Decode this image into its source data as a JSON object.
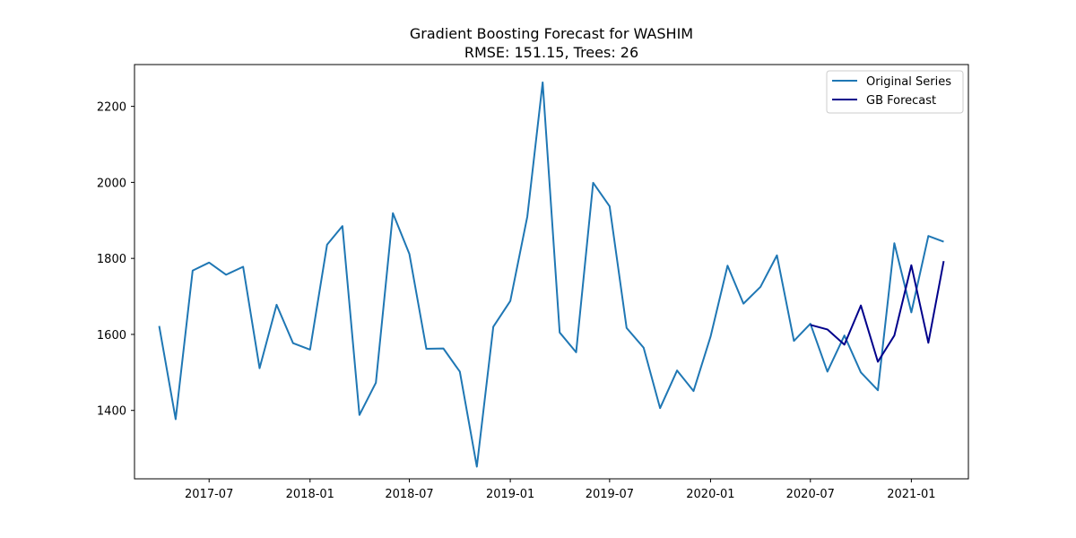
{
  "chart_data": {
    "type": "line",
    "title": "Gradient Boosting Forecast for WASHIM",
    "subtitle": "RMSE: 151.15, Trees: 26",
    "xlabel": "",
    "ylabel": "",
    "x_range": [
      "2017-02-15",
      "2021-04-15"
    ],
    "ylim": [
      1220,
      2310
    ],
    "x_ticks": [
      "2017-07",
      "2018-01",
      "2018-07",
      "2019-01",
      "2019-07",
      "2020-01",
      "2020-07",
      "2021-01"
    ],
    "y_ticks": [
      1400,
      1600,
      1800,
      2000,
      2200
    ],
    "grid": false,
    "legend_position": "top-right",
    "series": [
      {
        "name": "Original Series",
        "color": "#1f77b4",
        "points": [
          [
            "2017-04",
            1622
          ],
          [
            "2017-05",
            1377
          ],
          [
            "2017-06",
            1768
          ],
          [
            "2017-07",
            1789
          ],
          [
            "2017-08",
            1757
          ],
          [
            "2017-09",
            1778
          ],
          [
            "2017-10",
            1511
          ],
          [
            "2017-11",
            1678
          ],
          [
            "2017-12",
            1577
          ],
          [
            "2018-01",
            1560
          ],
          [
            "2018-02",
            1836
          ],
          [
            "2018-03",
            1885
          ],
          [
            "2018-04",
            1388
          ],
          [
            "2018-05",
            1473
          ],
          [
            "2018-06",
            1919
          ],
          [
            "2018-07",
            1812
          ],
          [
            "2018-08",
            1562
          ],
          [
            "2018-09",
            1563
          ],
          [
            "2018-10",
            1502
          ],
          [
            "2018-11",
            1252
          ],
          [
            "2018-12",
            1620
          ],
          [
            "2019-01",
            1688
          ],
          [
            "2019-02",
            1910
          ],
          [
            "2019-03",
            2263
          ],
          [
            "2019-04",
            1605
          ],
          [
            "2019-05",
            1553
          ],
          [
            "2019-06",
            1999
          ],
          [
            "2019-07",
            1937
          ],
          [
            "2019-08",
            1617
          ],
          [
            "2019-09",
            1565
          ],
          [
            "2019-10",
            1406
          ],
          [
            "2019-11",
            1505
          ],
          [
            "2019-12",
            1451
          ],
          [
            "2020-01",
            1594
          ],
          [
            "2020-02",
            1781
          ],
          [
            "2020-03",
            1681
          ],
          [
            "2020-04",
            1725
          ],
          [
            "2020-05",
            1808
          ],
          [
            "2020-06",
            1583
          ],
          [
            "2020-07",
            1628
          ],
          [
            "2020-08",
            1502
          ],
          [
            "2020-09",
            1597
          ],
          [
            "2020-10",
            1500
          ],
          [
            "2020-11",
            1453
          ],
          [
            "2020-12",
            1840
          ],
          [
            "2021-01",
            1658
          ],
          [
            "2021-02",
            1859
          ],
          [
            "2021-03",
            1844
          ]
        ]
      },
      {
        "name": "GB Forecast",
        "color": "#00008b",
        "points": [
          [
            "2020-07",
            1625
          ],
          [
            "2020-08",
            1613
          ],
          [
            "2020-09",
            1573
          ],
          [
            "2020-10",
            1676
          ],
          [
            "2020-11",
            1528
          ],
          [
            "2020-12",
            1597
          ],
          [
            "2021-01",
            1782
          ],
          [
            "2021-02",
            1578
          ],
          [
            "2021-03",
            1793
          ]
        ]
      }
    ]
  }
}
